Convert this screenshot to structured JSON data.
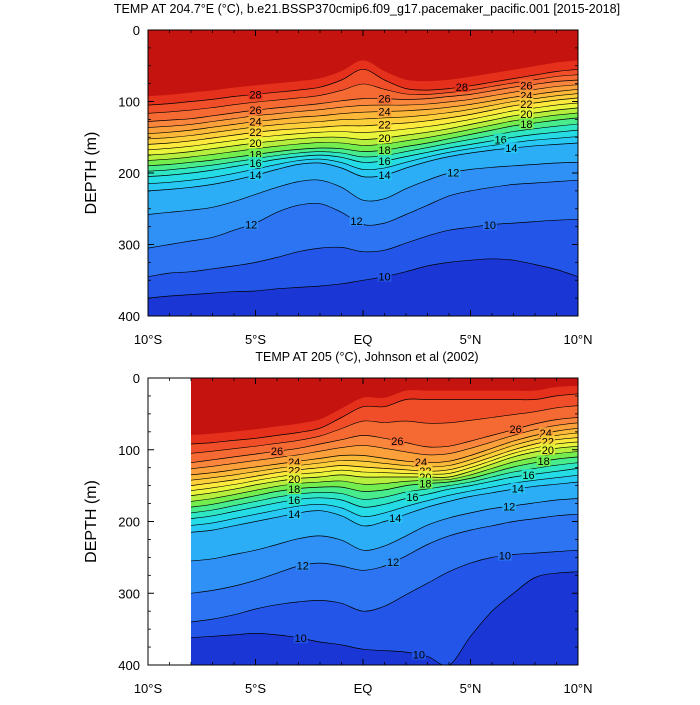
{
  "chart_data": [
    {
      "type": "contour",
      "title": "TEMP AT 204.7°E (°C), b.e21.BSSP370cmip6.f09_g17.pacemaker_pacific.001 [2015-2018]",
      "ylabel": "DEPTH (m)",
      "xlabel": "",
      "xlim": [
        -10,
        10
      ],
      "ylim": [
        400,
        0
      ],
      "x_ticks": [
        -10,
        -5,
        0,
        5,
        10
      ],
      "x_tick_labels": [
        "10°S",
        "5°S",
        "EQ",
        "5°N",
        "10°N"
      ],
      "y_ticks": [
        0,
        100,
        200,
        300,
        400
      ],
      "y_tick_labels": [
        "0",
        "100",
        "200",
        "300",
        "400"
      ],
      "data_extent_x": [
        -10,
        10
      ],
      "contour_interval": 1,
      "contour_levels": [
        9,
        10,
        11,
        12,
        13,
        14,
        15,
        16,
        17,
        18,
        19,
        20,
        21,
        22,
        23,
        24,
        25,
        26,
        27,
        28,
        29
      ],
      "isotherms": [
        {
          "level": 10,
          "depths": [
            375,
            372,
            370,
            368,
            366,
            365,
            362,
            360,
            358,
            355,
            350,
            345,
            338,
            330,
            325,
            322,
            320,
            322,
            328,
            335,
            345
          ]
        },
        {
          "level": 11,
          "depths": [
            345,
            340,
            338,
            334,
            330,
            325,
            318,
            310,
            305,
            304,
            310,
            308,
            298,
            288,
            280,
            276,
            272,
            270,
            268,
            266,
            265
          ]
        },
        {
          "level": 12,
          "depths": [
            305,
            300,
            295,
            290,
            280,
            270,
            255,
            245,
            243,
            255,
            272,
            270,
            258,
            245,
            232,
            225,
            220,
            216,
            214,
            212,
            210
          ]
        },
        {
          "level": 13,
          "depths": [
            258,
            255,
            252,
            248,
            240,
            230,
            220,
            212,
            210,
            220,
            238,
            236,
            222,
            210,
            200,
            195,
            192,
            190,
            188,
            186,
            185
          ]
        },
        {
          "level": 14,
          "depths": [
            225,
            223,
            220,
            216,
            210,
            203,
            195,
            188,
            186,
            193,
            205,
            203,
            193,
            184,
            177,
            172,
            168,
            165,
            162,
            160,
            158
          ]
        },
        {
          "level": 16,
          "depths": [
            205,
            203,
            200,
            196,
            191,
            186,
            181,
            177,
            175,
            178,
            185,
            183,
            177,
            171,
            165,
            160,
            155,
            150,
            146,
            143,
            140
          ]
        },
        {
          "level": 18,
          "depths": [
            190,
            188,
            185,
            182,
            178,
            174,
            170,
            167,
            165,
            166,
            170,
            168,
            163,
            158,
            152,
            146,
            140,
            134,
            130,
            126,
            123
          ]
        },
        {
          "level": 20,
          "depths": [
            175,
            173,
            170,
            166,
            162,
            158,
            155,
            152,
            150,
            150,
            153,
            151,
            147,
            143,
            138,
            132,
            126,
            120,
            116,
            112,
            109
          ]
        },
        {
          "level": 22,
          "depths": [
            160,
            158,
            155,
            151,
            147,
            143,
            140,
            138,
            136,
            134,
            134,
            132,
            130,
            127,
            123,
            118,
            112,
            106,
            102,
            98,
            95
          ]
        },
        {
          "level": 24,
          "depths": [
            145,
            143,
            140,
            136,
            132,
            128,
            125,
            122,
            120,
            117,
            115,
            114,
            113,
            111,
            108,
            104,
            99,
            94,
            90,
            86,
            83
          ]
        },
        {
          "level": 26,
          "depths": [
            128,
            126,
            124,
            120,
            116,
            112,
            109,
            106,
            103,
            99,
            96,
            96,
            97,
            96,
            93,
            90,
            85,
            80,
            76,
            72,
            70
          ]
        },
        {
          "level": 28,
          "depths": [
            105,
            103,
            100,
            97,
            93,
            90,
            87,
            84,
            80,
            70,
            55,
            70,
            82,
            84,
            82,
            78,
            73,
            68,
            63,
            58,
            55
          ]
        }
      ],
      "contour_labels": [
        "28",
        "26",
        "24",
        "22",
        "20",
        "18",
        "16",
        "14",
        "12",
        "26",
        "24",
        "22",
        "20",
        "18",
        "16",
        "14",
        "12",
        "28",
        "26",
        "24",
        "22",
        "20",
        "18",
        "16",
        "14",
        "12",
        "10",
        "10"
      ],
      "colormap": [
        "#1a36d4",
        "#2356e8",
        "#2c74f2",
        "#2f90f6",
        "#2caef7",
        "#27c8f4",
        "#25dbe6",
        "#2ee6c4",
        "#48ec8c",
        "#74ee4f",
        "#b6ef3e",
        "#e8f53a",
        "#fdea3c",
        "#fdcf3a",
        "#fcb838",
        "#fba03a",
        "#f9863c",
        "#f46a32",
        "#ef4e28",
        "#e5301c",
        "#c51410"
      ]
    },
    {
      "type": "contour",
      "title": "TEMP AT 205 (°C), Johnson et al (2002)",
      "ylabel": "DEPTH (m)",
      "xlabel": "",
      "xlim": [
        -10,
        10
      ],
      "ylim": [
        400,
        0
      ],
      "x_ticks": [
        -10,
        -5,
        0,
        5,
        10
      ],
      "x_tick_labels": [
        "10°S",
        "5°S",
        "EQ",
        "5°N",
        "10°N"
      ],
      "y_ticks": [
        0,
        100,
        200,
        300,
        400
      ],
      "y_tick_labels": [
        "0",
        "100",
        "200",
        "300",
        "400"
      ],
      "data_extent_x": [
        -8,
        10
      ],
      "contour_interval": 1,
      "contour_levels": [
        9,
        10,
        11,
        12,
        13,
        14,
        15,
        16,
        17,
        18,
        19,
        20,
        21,
        22,
        23,
        24,
        25,
        26,
        27,
        28,
        29
      ],
      "isotherms": [
        {
          "level": 10,
          "depths": [
            null,
            null,
            362,
            360,
            358,
            356,
            358,
            362,
            368,
            372,
            378,
            380,
            382,
            388,
            400,
            360,
            325,
            300,
            278,
            272,
            270
          ]
        },
        {
          "level": 11,
          "depths": [
            null,
            null,
            340,
            336,
            330,
            322,
            316,
            312,
            310,
            314,
            325,
            318,
            302,
            286,
            270,
            258,
            250,
            246,
            244,
            242,
            240
          ]
        },
        {
          "level": 12,
          "depths": [
            null,
            null,
            300,
            296,
            290,
            282,
            272,
            262,
            258,
            262,
            268,
            262,
            248,
            232,
            220,
            212,
            206,
            200,
            196,
            192,
            190
          ]
        },
        {
          "level": 13,
          "depths": [
            null,
            null,
            255,
            252,
            246,
            240,
            232,
            224,
            220,
            226,
            240,
            234,
            220,
            205,
            195,
            188,
            182,
            178,
            174,
            170,
            168
          ]
        },
        {
          "level": 14,
          "depths": [
            null,
            null,
            215,
            212,
            206,
            200,
            194,
            188,
            185,
            192,
            206,
            200,
            190,
            180,
            172,
            165,
            160,
            155,
            151,
            148,
            145
          ]
        },
        {
          "level": 16,
          "depths": [
            null,
            null,
            196,
            192,
            186,
            180,
            174,
            169,
            167,
            170,
            180,
            176,
            168,
            162,
            155,
            150,
            144,
            138,
            134,
            130,
            126
          ]
        },
        {
          "level": 18,
          "depths": [
            null,
            null,
            180,
            176,
            170,
            164,
            158,
            154,
            152,
            152,
            158,
            156,
            150,
            147,
            145,
            140,
            132,
            124,
            118,
            113,
            110
          ]
        },
        {
          "level": 20,
          "depths": [
            null,
            null,
            164,
            160,
            155,
            149,
            144,
            140,
            138,
            135,
            138,
            138,
            138,
            138,
            138,
            130,
            120,
            110,
            103,
            98,
            95
          ]
        },
        {
          "level": 22,
          "depths": [
            null,
            null,
            150,
            146,
            142,
            137,
            132,
            128,
            125,
            122,
            124,
            126,
            128,
            130,
            128,
            120,
            110,
            100,
            92,
            86,
            83
          ]
        },
        {
          "level": 24,
          "depths": [
            null,
            null,
            135,
            132,
            128,
            124,
            120,
            116,
            112,
            108,
            108,
            112,
            116,
            118,
            116,
            108,
            98,
            88,
            80,
            74,
            70
          ]
        },
        {
          "level": 26,
          "depths": [
            null,
            null,
            118,
            114,
            110,
            106,
            102,
            98,
            92,
            86,
            80,
            84,
            90,
            96,
            95,
            88,
            80,
            72,
            64,
            58,
            55
          ]
        },
        {
          "level": 28,
          "depths": [
            null,
            null,
            92,
            90,
            87,
            84,
            80,
            76,
            70,
            55,
            40,
            40,
            30,
            30,
            30,
            30,
            30,
            30,
            30,
            25,
            22
          ]
        }
      ],
      "contour_labels": [
        "26",
        "24",
        "22",
        "20",
        "18",
        "16",
        "14",
        "12",
        "26",
        "24",
        "22",
        "20",
        "18",
        "16",
        "14",
        "12",
        "26",
        "24",
        "22",
        "20",
        "18",
        "16",
        "14",
        "12",
        "10",
        "10",
        "10"
      ],
      "colormap": [
        "#1a36d4",
        "#2356e8",
        "#2c74f2",
        "#2f90f6",
        "#2caef7",
        "#27c8f4",
        "#25dbe6",
        "#2ee6c4",
        "#48ec8c",
        "#74ee4f",
        "#b6ef3e",
        "#e8f53a",
        "#fdea3c",
        "#fdcf3a",
        "#fcb838",
        "#fba03a",
        "#f9863c",
        "#f46a32",
        "#ef4e28",
        "#e5301c",
        "#c51410"
      ]
    }
  ]
}
